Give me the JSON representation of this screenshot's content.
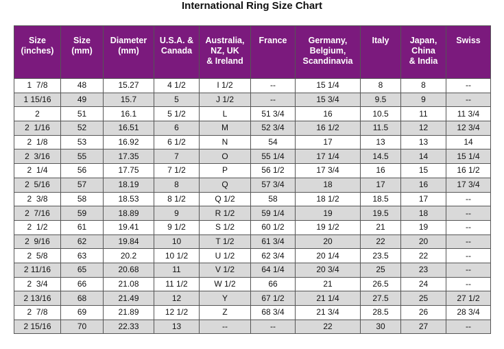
{
  "title": "International Ring Size Chart",
  "table": {
    "header": [
      "Size\n(inches)",
      "Size\n(mm)",
      "Diameter\n(mm)",
      "U.S.A. &\nCanada",
      "Australia,\nNZ, UK\n& Ireland",
      "France",
      "Germany,\nBelgium,\nScandinavia",
      "Italy",
      "Japan,\nChina\n& India",
      "Swiss"
    ],
    "rows": [
      [
        "1  7/8",
        "48",
        "15.27",
        "4 1/2",
        "I 1/2",
        "--",
        "15 1/4",
        "8",
        "8",
        "--"
      ],
      [
        "1 15/16",
        "49",
        "15.7",
        "5",
        "J 1/2",
        "--",
        "15 3/4",
        "9.5",
        "9",
        "--"
      ],
      [
        "2",
        "51",
        "16.1",
        "5 1/2",
        "L",
        "51 3/4",
        "16",
        "10.5",
        "11",
        "11 3/4"
      ],
      [
        "2  1/16",
        "52",
        "16.51",
        "6",
        "M",
        "52 3/4",
        "16 1/2",
        "11.5",
        "12",
        "12 3/4"
      ],
      [
        "2  1/8",
        "53",
        "16.92",
        "6 1/2",
        "N",
        "54",
        "17",
        "13",
        "13",
        "14"
      ],
      [
        "2  3/16",
        "55",
        "17.35",
        "7",
        "O",
        "55 1/4",
        "17 1/4",
        "14.5",
        "14",
        "15 1/4"
      ],
      [
        "2  1/4",
        "56",
        "17.75",
        "7 1/2",
        "P",
        "56 1/2",
        "17 3/4",
        "16",
        "15",
        "16 1/2"
      ],
      [
        "2  5/16",
        "57",
        "18.19",
        "8",
        "Q",
        "57 3/4",
        "18",
        "17",
        "16",
        "17 3/4"
      ],
      [
        "2  3/8",
        "58",
        "18.53",
        "8 1/2",
        "Q 1/2",
        "58",
        "18 1/2",
        "18.5",
        "17",
        "--"
      ],
      [
        "2  7/16",
        "59",
        "18.89",
        "9",
        "R 1/2",
        "59 1/4",
        "19",
        "19.5",
        "18",
        "--"
      ],
      [
        "2  1/2",
        "61",
        "19.41",
        "9 1/2",
        "S 1/2",
        "60 1/2",
        "19 1/2",
        "21",
        "19",
        "--"
      ],
      [
        "2  9/16",
        "62",
        "19.84",
        "10",
        "T 1/2",
        "61 3/4",
        "20",
        "22",
        "20",
        "--"
      ],
      [
        "2  5/8",
        "63",
        "20.2",
        "10 1/2",
        "U 1/2",
        "62 3/4",
        "20 1/4",
        "23.5",
        "22",
        "--"
      ],
      [
        "2 11/16",
        "65",
        "20.68",
        "11",
        "V 1/2",
        "64 1/4",
        "20 3/4",
        "25",
        "23",
        "--"
      ],
      [
        "2  3/4",
        "66",
        "21.08",
        "11 1/2",
        "W 1/2",
        "66",
        "21",
        "26.5",
        "24",
        "--"
      ],
      [
        "2 13/16",
        "68",
        "21.49",
        "12",
        "Y",
        "67 1/2",
        "21 1/4",
        "27.5",
        "25",
        "27 1/2"
      ],
      [
        "2  7/8",
        "69",
        "21.89",
        "12 1/2",
        "Z",
        "68 3/4",
        "21 3/4",
        "28.5",
        "26",
        "28 3/4"
      ],
      [
        "2 15/16",
        "70",
        "22.33",
        "13",
        "--",
        "--",
        "22",
        "30",
        "27",
        "--"
      ]
    ]
  }
}
